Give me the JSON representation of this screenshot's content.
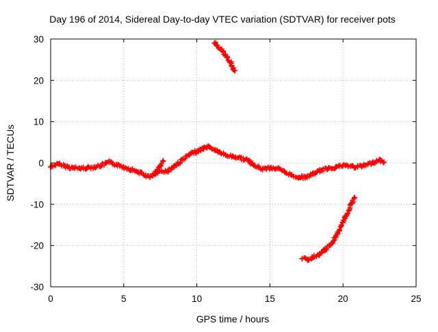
{
  "chart_data": {
    "type": "scatter",
    "title": "Day 196 of 2014, Sidereal Day-to-day VTEC variation (SDTVAR) for receiver pots",
    "xlabel": "GPS time / hours",
    "ylabel": "SDTVAR / TECUs",
    "xlim": [
      0,
      25
    ],
    "ylim": [
      -30,
      30
    ],
    "xticks": [
      0,
      5,
      10,
      15,
      20,
      25
    ],
    "yticks": [
      -30,
      -20,
      -10,
      0,
      10,
      20,
      30
    ],
    "xtick_labels": [
      "0",
      "5",
      "10",
      "15",
      "20",
      "25"
    ],
    "ytick_labels": [
      "-30",
      "-20",
      "-10",
      "0",
      "10",
      "20",
      "30"
    ],
    "grid": true,
    "marker": "plus",
    "series": [
      {
        "name": "main-track",
        "color": "#ff0000",
        "x": [
          0.0,
          0.3,
          0.6,
          1.0,
          1.5,
          2.0,
          2.5,
          3.0,
          3.5,
          4.0,
          4.5,
          5.0,
          5.5,
          6.0,
          6.5,
          6.8,
          7.2,
          7.6,
          8.0,
          8.3,
          8.7,
          9.1,
          9.5,
          10.0,
          10.4,
          10.8,
          11.2,
          11.6,
          12.0,
          12.5,
          13.0,
          13.5,
          14.0,
          14.5,
          15.0,
          15.5,
          16.0,
          16.5,
          17.0,
          17.5,
          18.0,
          18.5,
          19.0,
          19.5,
          20.0,
          20.5,
          21.0,
          21.5,
          22.0,
          22.5,
          22.8
        ],
        "y": [
          -1.0,
          -0.5,
          -0.3,
          -0.8,
          -1.2,
          -1.3,
          -1.2,
          -1.0,
          -0.6,
          0.2,
          -0.4,
          -1.0,
          -1.6,
          -2.2,
          -3.0,
          -3.5,
          -2.6,
          -2.0,
          -2.0,
          -1.2,
          -0.2,
          1.0,
          2.0,
          2.8,
          3.4,
          4.0,
          3.2,
          2.5,
          1.8,
          1.5,
          1.2,
          0.6,
          -0.8,
          -1.5,
          -1.2,
          -1.3,
          -2.2,
          -3.0,
          -3.5,
          -3.4,
          -2.6,
          -1.8,
          -1.3,
          -1.0,
          -0.6,
          -0.8,
          -1.0,
          -0.6,
          0.0,
          0.8,
          0.2
        ]
      },
      {
        "name": "upper-arc",
        "color": "#ff0000",
        "x": [
          11.2,
          11.5,
          11.8,
          12.1,
          12.4,
          12.6
        ],
        "y": [
          29.0,
          28.0,
          26.9,
          25.5,
          23.6,
          22.3
        ]
      },
      {
        "name": "lower-arc",
        "color": "#ff0000",
        "x": [
          17.2,
          17.6,
          18.0,
          18.4,
          18.8,
          19.2,
          19.6,
          20.0,
          20.3,
          20.6,
          20.8
        ],
        "y": [
          -23.2,
          -23.4,
          -22.8,
          -22.0,
          -21.0,
          -19.6,
          -17.2,
          -14.4,
          -12.2,
          -9.8,
          -8.4
        ]
      },
      {
        "name": "small-segment",
        "color": "#ff0000",
        "x": [
          7.1,
          7.3,
          7.5,
          7.7
        ],
        "y": [
          -2.6,
          -1.6,
          -0.6,
          0.4
        ]
      }
    ]
  }
}
